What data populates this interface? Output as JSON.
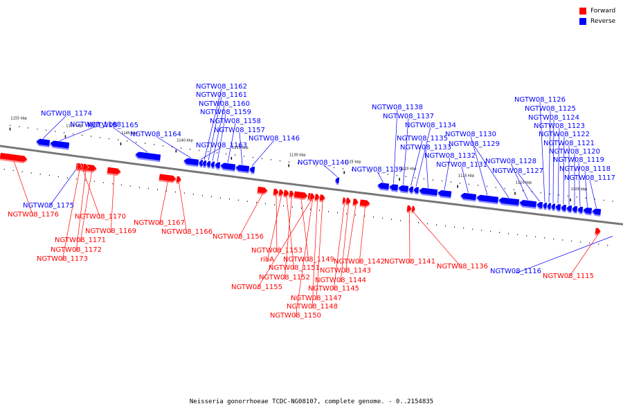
{
  "legend": {
    "forward": {
      "label": "Forward",
      "color": "#ff0000"
    },
    "reverse": {
      "label": "Reverse",
      "color": "#0000ff"
    }
  },
  "caption": "Neisseria gonorrhoeae TCDC-NG08107, complete genome. - 0..2154835",
  "colors": {
    "backbone": "#777777",
    "forward": "#ff0000",
    "reverse": "#0000ff"
  },
  "kbp_marks": [
    "1155 kbp",
    "1150 kbp",
    "1145 kbp",
    "1140 kbp",
    "1135 kbp",
    "1130 kbp",
    "1125 kbp",
    "1120 kbp",
    "1115 kbp",
    "1110 kbp",
    "1105 kbp"
  ],
  "genes_reverse": [
    "NGTW08_1174",
    "NGTW08_1168",
    "NGTW08_1165",
    "NGTW08_1164",
    "NGTW08_1163",
    "NGTW08_1162",
    "NGTW08_1161",
    "NGTW08_1160",
    "NGTW08_1159",
    "NGTW08_1158",
    "NGTW08_1157",
    "NGTW08_1146",
    "NGTW08_1140",
    "NGTW08_1139",
    "NGTW08_1138",
    "NGTW08_1137",
    "NGTW08_1135",
    "NGTW08_1134",
    "NGTW08_1133",
    "NGTW08_1132",
    "NGTW08_1131",
    "NGTW08_1130",
    "NGTW08_1129",
    "NGTW08_1128",
    "NGTW08_1127",
    "NGTW08_1126",
    "NGTW08_1125",
    "NGTW08_1124",
    "NGTW08_1123",
    "NGTW08_1122",
    "NGTW08_1121",
    "NGTW08_1120",
    "NGTW08_1119",
    "NGTW08_1118",
    "NGTW08_1117",
    "NGTW08_1175",
    "NGTW08_1116"
  ],
  "genes_forward": [
    "NGTW08_1176",
    "NGTW08_1170",
    "NGTW08_1169",
    "NGTW08_1171",
    "NGTW08_1172",
    "NGTW08_1173",
    "NGTW08_1167",
    "NGTW08_1166",
    "NGTW08_1156",
    "NGTW08_1153",
    "ribA",
    "NGTW08_1149",
    "NGTW08_1151",
    "NGTW08_1152",
    "NGTW08_1155",
    "NGTW08_1142",
    "NGTW08_1143",
    "NGTW08_1144",
    "NGTW08_1145",
    "NGTW08_1147",
    "NGTW08_1148",
    "NGTW08_1150",
    "NGTW08_1141",
    "NGTW08_1136",
    "NGTW08_1115"
  ]
}
